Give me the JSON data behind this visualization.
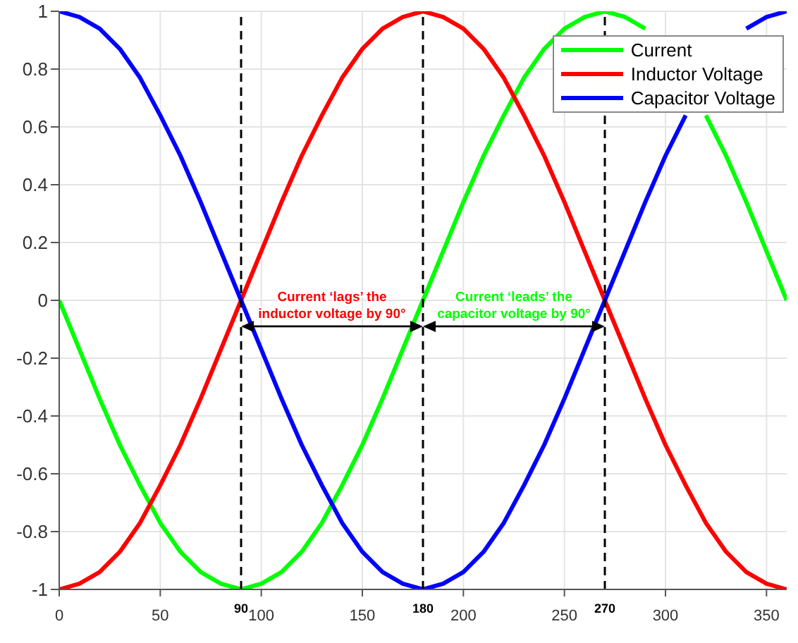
{
  "chart_data": {
    "type": "line",
    "x": [
      0,
      10,
      20,
      30,
      40,
      50,
      60,
      70,
      80,
      90,
      100,
      110,
      120,
      130,
      140,
      150,
      160,
      170,
      180,
      190,
      200,
      210,
      220,
      230,
      240,
      250,
      260,
      270,
      280,
      290,
      300,
      310,
      320,
      330,
      340,
      350,
      360
    ],
    "series": [
      {
        "name": "Current",
        "color": "#00ff00",
        "values": [
          0,
          -0.17,
          -0.34,
          -0.5,
          -0.64,
          -0.77,
          -0.87,
          -0.94,
          -0.98,
          -1,
          -0.98,
          -0.94,
          -0.87,
          -0.77,
          -0.64,
          -0.5,
          -0.34,
          -0.17,
          0,
          0.17,
          0.34,
          0.5,
          0.64,
          0.77,
          0.87,
          0.94,
          0.98,
          1,
          0.98,
          0.94,
          null,
          null,
          0.64,
          0.5,
          0.34,
          0.17,
          0
        ]
      },
      {
        "name": "Inductor Voltage",
        "color": "#ff0000",
        "values": [
          -1,
          -0.98,
          -0.94,
          -0.87,
          -0.77,
          -0.64,
          -0.5,
          -0.34,
          -0.17,
          0,
          0.17,
          0.34,
          0.5,
          0.64,
          0.77,
          0.87,
          0.94,
          0.98,
          1,
          0.98,
          0.94,
          0.87,
          0.77,
          0.64,
          0.5,
          0.34,
          0.17,
          0,
          -0.17,
          -0.34,
          -0.5,
          -0.64,
          -0.77,
          -0.87,
          -0.94,
          -0.98,
          -1
        ]
      },
      {
        "name": "Capacitor Voltage",
        "color": "#0000ff",
        "values": [
          1,
          0.98,
          0.94,
          0.87,
          0.77,
          0.64,
          0.5,
          0.34,
          0.17,
          0,
          -0.17,
          -0.34,
          -0.5,
          -0.64,
          -0.77,
          -0.87,
          -0.94,
          -0.98,
          -1,
          -0.98,
          -0.94,
          -0.87,
          -0.77,
          -0.64,
          -0.5,
          -0.34,
          -0.17,
          0,
          0.17,
          0.34,
          0.5,
          0.64,
          null,
          null,
          0.94,
          0.98,
          1
        ]
      }
    ],
    "xlim": [
      0,
      360
    ],
    "xticks": [
      0,
      50,
      100,
      150,
      200,
      250,
      300,
      350
    ],
    "ylim": [
      -1,
      1
    ],
    "yticks": [
      -1,
      -0.8,
      -0.6,
      -0.4,
      -0.2,
      0,
      0.2,
      0.4,
      0.6,
      0.8,
      1
    ],
    "ref_lines": [
      {
        "axis": "x",
        "value": 90,
        "label": "90",
        "color": "#000000",
        "line_style": "dashed"
      },
      {
        "axis": "x",
        "value": 180,
        "label": "180",
        "color": "#000000",
        "line_style": "dashed"
      },
      {
        "axis": "x",
        "value": 270,
        "label": "270",
        "color": "#000000",
        "line_style": "dashed"
      }
    ],
    "annotations": [
      "Current ‘lags’ the inductor voltage by 90°",
      "Current ‘leads’ the capacitor voltage by 90°"
    ],
    "grid": true,
    "legend": "top right",
    "marker": "none",
    "line_style": "solid"
  }
}
